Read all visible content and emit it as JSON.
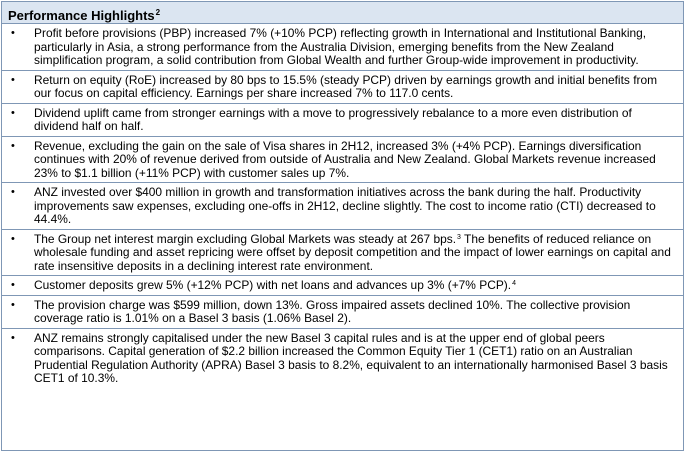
{
  "title": "Performance Highlights",
  "title_footnote": "2",
  "bullet_glyph": "•",
  "items": [
    {
      "text": "Profit before provisions (PBP) increased 7% (+10% PCP) reflecting growth in International and Institutional Banking, particularly in Asia, a strong performance from the Australia Division, emerging benefits from the New Zealand simplification program, a solid contribution from Global Wealth and further Group-wide improvement in productivity.",
      "after": ""
    },
    {
      "text": "Return on equity (RoE) increased by 80 bps to 15.5% (steady PCP) driven by earnings growth and initial benefits from our focus on capital efficiency. Earnings per share increased 7% to 117.0 cents.",
      "after": ""
    },
    {
      "text": "Dividend uplift came from stronger earnings with a move to progressively rebalance to a more even distribution of dividend half on half.",
      "after": ""
    },
    {
      "text": "Revenue, excluding the gain on the sale of Visa shares in 2H12, increased 3% (+4% PCP). Earnings diversification continues with 20% of revenue derived from outside of Australia and New Zealand. Global Markets revenue increased 23% to $1.1 billion (+11% PCP) with customer sales up 7%.",
      "after": ""
    },
    {
      "text": "ANZ invested over $400 million in growth and transformation initiatives across the bank during the half. Productivity improvements saw expenses, excluding one-offs in 2H12, decline slightly. The cost to income ratio (CTI) decreased to 44.4%.",
      "after": ""
    },
    {
      "text": "The Group net interest margin excluding Global Markets was steady at 267 bps.",
      "footnote": "3",
      "after": " The benefits of reduced reliance on wholesale funding and asset repricing were offset by deposit competition and the impact of lower earnings on capital and rate insensitive deposits in a declining interest rate environment."
    },
    {
      "text": "Customer deposits grew 5% (+12% PCP) with net loans and advances up 3% (+7% PCP).",
      "footnote": "4",
      "after": ""
    },
    {
      "text": "The provision charge was $599 million, down 13%. Gross impaired assets declined 10%. The collective provision coverage ratio is 1.01% on a Basel 3 basis (1.06% Basel 2).",
      "after": ""
    },
    {
      "text": "ANZ remains strongly capitalised under the new Basel 3 capital rules and is at the upper end of global peers comparisons. Capital generation of $2.2 billion increased the Common Equity Tier 1 (CET1) ratio on an Australian Prudential Regulation Authority (APRA) Basel 3 basis to 8.2%, equivalent to an internationally harmonised Basel 3 basis CET1 of 10.3%.",
      "after": ""
    }
  ]
}
